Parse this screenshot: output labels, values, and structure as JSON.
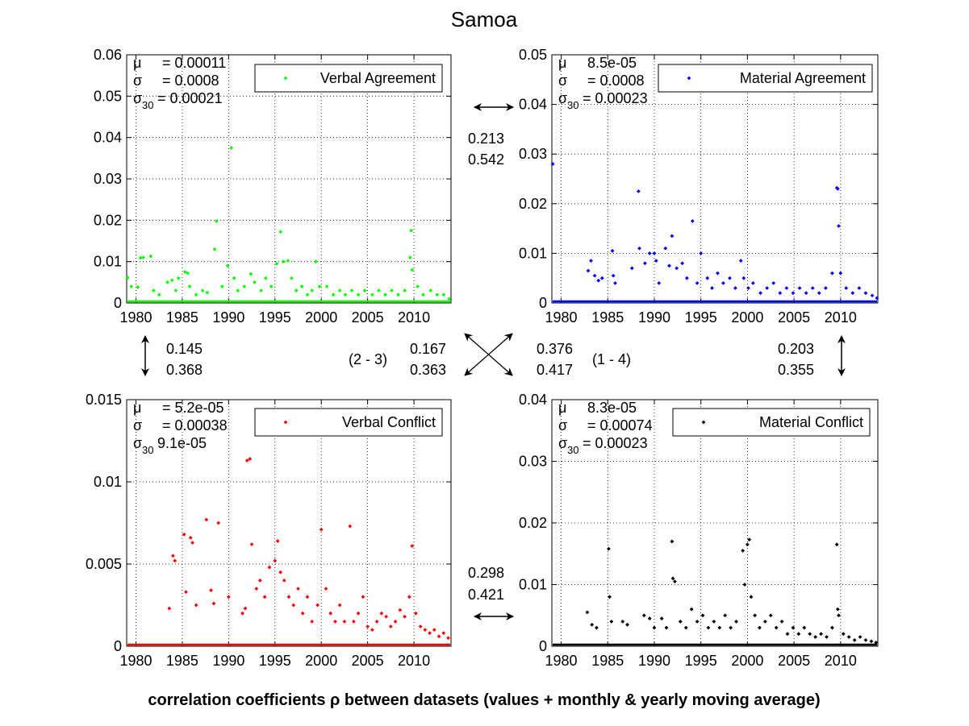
{
  "figure": {
    "title": "Samoa",
    "footer": "correlation coefficients ρ between datasets (values + monthly & yearly moving average)"
  },
  "chart_data": [
    {
      "type": "scatter",
      "id": "verbal-agreement",
      "legend": "Verbal Agreement",
      "color": "#00ff00",
      "xlim": [
        1979,
        2014
      ],
      "ylim": [
        0,
        0.06
      ],
      "xticks": [
        "1980",
        "1985",
        "1990",
        "1995",
        "2000",
        "2005",
        "2010"
      ],
      "yticks": [
        "0",
        "0.01",
        "0.02",
        "0.03",
        "0.04",
        "0.05",
        "0.06"
      ],
      "grid": true,
      "legend_position": "top-right",
      "stats": {
        "mu": "= 0.00011",
        "sigma": "= 0.0008",
        "sigma30": "= 0.00021"
      },
      "points": [
        [
          1979.1,
          0.0061
        ],
        [
          1979.5,
          0.004
        ],
        [
          1980.2,
          0.0038
        ],
        [
          1980.5,
          0.0109
        ],
        [
          1980.8,
          0.011
        ],
        [
          1981.6,
          0.0113
        ],
        [
          1981.9,
          0.003
        ],
        [
          1982.5,
          0.002
        ],
        [
          1983.4,
          0.005
        ],
        [
          1983.9,
          0.0055
        ],
        [
          1984.3,
          0.003
        ],
        [
          1984.6,
          0.006
        ],
        [
          1985.3,
          0.0075
        ],
        [
          1985.6,
          0.0072
        ],
        [
          1985.8,
          0.004
        ],
        [
          1986.5,
          0.002
        ],
        [
          1987.2,
          0.003
        ],
        [
          1987.7,
          0.0025
        ],
        [
          1988.5,
          0.013
        ],
        [
          1988.7,
          0.0198
        ],
        [
          1989.3,
          0.004
        ],
        [
          1989.9,
          0.009
        ],
        [
          1990.3,
          0.0375
        ],
        [
          1990.6,
          0.006
        ],
        [
          1991.0,
          0.003
        ],
        [
          1991.7,
          0.004
        ],
        [
          1992.4,
          0.007
        ],
        [
          1992.8,
          0.005
        ],
        [
          1993.5,
          0.003
        ],
        [
          1994.0,
          0.006
        ],
        [
          1994.6,
          0.004
        ],
        [
          1995.2,
          0.0095
        ],
        [
          1995.6,
          0.0172
        ],
        [
          1995.9,
          0.01
        ],
        [
          1996.4,
          0.0102
        ],
        [
          1996.8,
          0.006
        ],
        [
          1997.3,
          0.003
        ],
        [
          1997.9,
          0.004
        ],
        [
          1998.5,
          0.002
        ],
        [
          1999.0,
          0.003
        ],
        [
          1999.4,
          0.01
        ],
        [
          1999.8,
          0.004
        ],
        [
          2000.6,
          0.004
        ],
        [
          2001.3,
          0.002
        ],
        [
          2002.0,
          0.003
        ],
        [
          2002.6,
          0.002
        ],
        [
          2003.3,
          0.003
        ],
        [
          2004.0,
          0.002
        ],
        [
          2004.7,
          0.003
        ],
        [
          2005.5,
          0.002
        ],
        [
          2006.2,
          0.003
        ],
        [
          2006.9,
          0.002
        ],
        [
          2007.6,
          0.003
        ],
        [
          2008.3,
          0.002
        ],
        [
          2009.0,
          0.003
        ],
        [
          2009.6,
          0.011
        ],
        [
          2009.7,
          0.0175
        ],
        [
          2009.8,
          0.008
        ],
        [
          2010.4,
          0.004
        ],
        [
          2011.0,
          0.002
        ],
        [
          2011.8,
          0.003
        ],
        [
          2012.5,
          0.002
        ],
        [
          2013.2,
          0.002
        ],
        [
          2013.8,
          0.001
        ]
      ]
    },
    {
      "type": "scatter",
      "id": "material-agreement",
      "legend": "Material Agreement",
      "color": "#0000ff",
      "xlim": [
        1979,
        2014
      ],
      "ylim": [
        0,
        0.05
      ],
      "xticks": [
        "1980",
        "1985",
        "1990",
        "1995",
        "2000",
        "2005",
        "2010"
      ],
      "yticks": [
        "0",
        "0.01",
        "0.02",
        "0.03",
        "0.04",
        "0.05"
      ],
      "grid": true,
      "legend_position": "top-right",
      "stats": {
        "mu": "8.5e-05",
        "sigma": "= 0.0008",
        "sigma30": "= 0.00023"
      },
      "points": [
        [
          1979.1,
          0.028
        ],
        [
          1982.9,
          0.0065
        ],
        [
          1983.2,
          0.0085
        ],
        [
          1983.6,
          0.0055
        ],
        [
          1984.0,
          0.0045
        ],
        [
          1984.4,
          0.005
        ],
        [
          1985.5,
          0.0105
        ],
        [
          1985.6,
          0.0055
        ],
        [
          1985.8,
          0.004
        ],
        [
          1987.6,
          0.007
        ],
        [
          1988.3,
          0.0225
        ],
        [
          1988.4,
          0.011
        ],
        [
          1989.0,
          0.008
        ],
        [
          1989.5,
          0.01
        ],
        [
          1990.0,
          0.01
        ],
        [
          1990.2,
          0.0085
        ],
        [
          1990.5,
          0.004
        ],
        [
          1991.2,
          0.011
        ],
        [
          1991.6,
          0.0075
        ],
        [
          1991.9,
          0.0135
        ],
        [
          1992.4,
          0.007
        ],
        [
          1993.0,
          0.008
        ],
        [
          1993.5,
          0.005
        ],
        [
          1994.1,
          0.0165
        ],
        [
          1994.6,
          0.004
        ],
        [
          1995.0,
          0.01
        ],
        [
          1995.7,
          0.005
        ],
        [
          1996.2,
          0.003
        ],
        [
          1996.8,
          0.006
        ],
        [
          1997.4,
          0.004
        ],
        [
          1998.1,
          0.005
        ],
        [
          1998.7,
          0.003
        ],
        [
          1999.3,
          0.0085
        ],
        [
          1999.6,
          0.005
        ],
        [
          2000.1,
          0.003
        ],
        [
          2000.6,
          0.004
        ],
        [
          2001.4,
          0.002
        ],
        [
          2002.1,
          0.003
        ],
        [
          2002.8,
          0.004
        ],
        [
          2003.5,
          0.002
        ],
        [
          2004.2,
          0.003
        ],
        [
          2004.9,
          0.002
        ],
        [
          2005.6,
          0.003
        ],
        [
          2006.3,
          0.002
        ],
        [
          2007.0,
          0.003
        ],
        [
          2007.7,
          0.002
        ],
        [
          2008.4,
          0.003
        ],
        [
          2009.1,
          0.006
        ],
        [
          2009.6,
          0.0232
        ],
        [
          2009.7,
          0.023
        ],
        [
          2009.8,
          0.0155
        ],
        [
          2010.0,
          0.006
        ],
        [
          2010.6,
          0.003
        ],
        [
          2011.3,
          0.002
        ],
        [
          2012.0,
          0.003
        ],
        [
          2012.7,
          0.002
        ],
        [
          2013.4,
          0.0015
        ],
        [
          2013.9,
          0.001
        ]
      ]
    },
    {
      "type": "scatter",
      "id": "verbal-conflict",
      "legend": "Verbal Conflict",
      "color": "#ff0000",
      "xlim": [
        1979,
        2014
      ],
      "ylim": [
        0,
        0.015
      ],
      "xticks": [
        "1980",
        "1985",
        "1990",
        "1995",
        "2000",
        "2005",
        "2010"
      ],
      "yticks": [
        "0",
        "0.005",
        "0.01",
        "0.015"
      ],
      "grid": true,
      "legend_position": "top-right",
      "stats": {
        "mu": "= 5.2e-05",
        "sigma": "= 0.00038",
        "sigma30": "9.1e-05"
      },
      "points": [
        [
          1983.6,
          0.0023
        ],
        [
          1984.0,
          0.0055
        ],
        [
          1984.2,
          0.0052
        ],
        [
          1985.2,
          0.0068
        ],
        [
          1985.4,
          0.0033
        ],
        [
          1985.9,
          0.0066
        ],
        [
          1986.1,
          0.0063
        ],
        [
          1986.5,
          0.0025
        ],
        [
          1987.6,
          0.0077
        ],
        [
          1988.1,
          0.0034
        ],
        [
          1988.4,
          0.0026
        ],
        [
          1988.9,
          0.0075
        ],
        [
          1990.0,
          0.003
        ],
        [
          1991.5,
          0.002
        ],
        [
          1991.8,
          0.0023
        ],
        [
          1992.0,
          0.0113
        ],
        [
          1992.3,
          0.0114
        ],
        [
          1992.5,
          0.0062
        ],
        [
          1993.0,
          0.0035
        ],
        [
          1993.4,
          0.004
        ],
        [
          1993.9,
          0.003
        ],
        [
          1994.4,
          0.0048
        ],
        [
          1995.0,
          0.0052
        ],
        [
          1995.3,
          0.0064
        ],
        [
          1995.6,
          0.0045
        ],
        [
          1996.0,
          0.004
        ],
        [
          1996.5,
          0.003
        ],
        [
          1997.0,
          0.0025
        ],
        [
          1997.5,
          0.0035
        ],
        [
          1998.0,
          0.002
        ],
        [
          1998.5,
          0.003
        ],
        [
          1999.0,
          0.0015
        ],
        [
          1999.6,
          0.0025
        ],
        [
          2000.0,
          0.0071
        ],
        [
          2000.5,
          0.0035
        ],
        [
          2001.0,
          0.002
        ],
        [
          2001.5,
          0.0015
        ],
        [
          2002.0,
          0.0025
        ],
        [
          2002.5,
          0.0015
        ],
        [
          2003.1,
          0.0073
        ],
        [
          2003.5,
          0.0015
        ],
        [
          2004.0,
          0.002
        ],
        [
          2004.5,
          0.003
        ],
        [
          2005.0,
          0.0012
        ],
        [
          2005.5,
          0.001
        ],
        [
          2006.0,
          0.0015
        ],
        [
          2006.5,
          0.002
        ],
        [
          2007.0,
          0.0018
        ],
        [
          2007.5,
          0.0012
        ],
        [
          2008.0,
          0.0015
        ],
        [
          2008.5,
          0.0022
        ],
        [
          2009.0,
          0.0018
        ],
        [
          2009.5,
          0.003
        ],
        [
          2009.8,
          0.0061
        ],
        [
          2010.2,
          0.002
        ],
        [
          2010.7,
          0.0012
        ],
        [
          2011.2,
          0.001
        ],
        [
          2011.7,
          0.0008
        ],
        [
          2012.2,
          0.001
        ],
        [
          2012.7,
          0.0006
        ],
        [
          2013.2,
          0.0008
        ],
        [
          2013.7,
          0.0005
        ]
      ]
    },
    {
      "type": "scatter",
      "id": "material-conflict",
      "legend": "Material Conflict",
      "color": "#000000",
      "xlim": [
        1979,
        2014
      ],
      "ylim": [
        0,
        0.04
      ],
      "xticks": [
        "1980",
        "1985",
        "1990",
        "1995",
        "2000",
        "2005",
        "2010"
      ],
      "yticks": [
        "0",
        "0.01",
        "0.02",
        "0.03",
        "0.04"
      ],
      "grid": true,
      "legend_position": "top-right",
      "stats": {
        "mu": "8.3e-05",
        "sigma": "= 0.00074",
        "sigma30": "= 0.00023"
      },
      "points": [
        [
          1982.8,
          0.0055
        ],
        [
          1983.3,
          0.0035
        ],
        [
          1983.8,
          0.003
        ],
        [
          1985.1,
          0.0158
        ],
        [
          1985.2,
          0.008
        ],
        [
          1985.4,
          0.004
        ],
        [
          1986.6,
          0.004
        ],
        [
          1987.1,
          0.0035
        ],
        [
          1988.9,
          0.005
        ],
        [
          1989.5,
          0.0045
        ],
        [
          1990.0,
          0.003
        ],
        [
          1990.8,
          0.0045
        ],
        [
          1991.3,
          0.003
        ],
        [
          1991.9,
          0.017
        ],
        [
          1992.0,
          0.011
        ],
        [
          1992.2,
          0.0105
        ],
        [
          1992.8,
          0.004
        ],
        [
          1993.4,
          0.003
        ],
        [
          1994.0,
          0.006
        ],
        [
          1994.6,
          0.004
        ],
        [
          1995.2,
          0.005
        ],
        [
          1995.8,
          0.003
        ],
        [
          1996.4,
          0.004
        ],
        [
          1997.0,
          0.003
        ],
        [
          1997.6,
          0.005
        ],
        [
          1998.2,
          0.003
        ],
        [
          1998.8,
          0.004
        ],
        [
          1999.5,
          0.0155
        ],
        [
          1999.7,
          0.01
        ],
        [
          2000.0,
          0.0165
        ],
        [
          2000.2,
          0.0173
        ],
        [
          2000.4,
          0.008
        ],
        [
          2000.8,
          0.005
        ],
        [
          2001.3,
          0.003
        ],
        [
          2001.9,
          0.004
        ],
        [
          2002.5,
          0.005
        ],
        [
          2003.1,
          0.003
        ],
        [
          2003.7,
          0.004
        ],
        [
          2004.3,
          0.002
        ],
        [
          2004.9,
          0.003
        ],
        [
          2005.5,
          0.002
        ],
        [
          2006.1,
          0.003
        ],
        [
          2006.7,
          0.002
        ],
        [
          2007.3,
          0.0015
        ],
        [
          2007.9,
          0.002
        ],
        [
          2008.5,
          0.0015
        ],
        [
          2009.1,
          0.003
        ],
        [
          2009.6,
          0.0165
        ],
        [
          2009.7,
          0.006
        ],
        [
          2009.8,
          0.005
        ],
        [
          2010.3,
          0.002
        ],
        [
          2010.9,
          0.0015
        ],
        [
          2011.5,
          0.001
        ],
        [
          2012.1,
          0.0015
        ],
        [
          2012.7,
          0.001
        ],
        [
          2013.3,
          0.0008
        ],
        [
          2013.8,
          0.0006
        ]
      ]
    }
  ],
  "correlations": {
    "top": {
      "a": "0.213",
      "b": "0.542"
    },
    "left": {
      "a": "0.145",
      "b": "0.368"
    },
    "center_left": {
      "label": "(2 - 3)",
      "a": "0.167",
      "b": "0.363"
    },
    "center_right": {
      "label": "(1 - 4)",
      "a": "0.376",
      "b": "0.417"
    },
    "right": {
      "a": "0.203",
      "b": "0.355"
    },
    "bottom": {
      "a": "0.298",
      "b": "0.421"
    }
  }
}
